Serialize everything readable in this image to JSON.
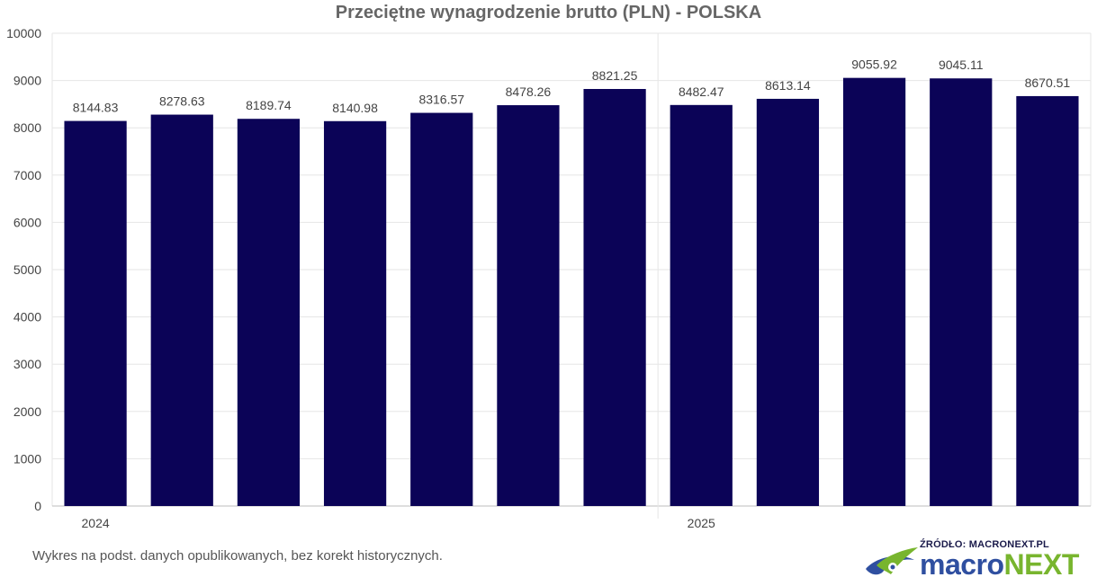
{
  "chart_data": {
    "type": "bar",
    "title": "Przeciętne wynagrodzenie brutto (PLN) - POLSKA",
    "xlabel": "",
    "ylabel": "",
    "ylim": [
      0,
      10000
    ],
    "yticks": [
      "0",
      "1000",
      "2000",
      "3000",
      "4000",
      "5000",
      "6000",
      "7000",
      "8000",
      "9000",
      "10000"
    ],
    "year_groups": [
      {
        "label": "2024",
        "start_index": 0
      },
      {
        "label": "2025",
        "start_index": 7
      }
    ],
    "values": [
      8144.83,
      8278.63,
      8189.74,
      8140.98,
      8316.57,
      8478.26,
      8821.25,
      8482.47,
      8613.14,
      9055.92,
      9045.11,
      8670.51
    ],
    "value_labels": [
      "8144.83",
      "8278.63",
      "8189.74",
      "8140.98",
      "8316.57",
      "8478.26",
      "8821.25",
      "8482.47",
      "8613.14",
      "9055.92",
      "9045.11",
      "8670.51"
    ],
    "bar_color": "#0b0357",
    "grid": true,
    "legend": "none"
  },
  "footnote": "Wykres na podst. danych opublikowanych, bez korekt historycznych.",
  "source": "ŹRÓDŁO: MACRONEXT.PL",
  "logo": {
    "part1": "macro",
    "part2": "NEXT",
    "color1": "#2f4fa0",
    "color2": "#78b52e"
  }
}
